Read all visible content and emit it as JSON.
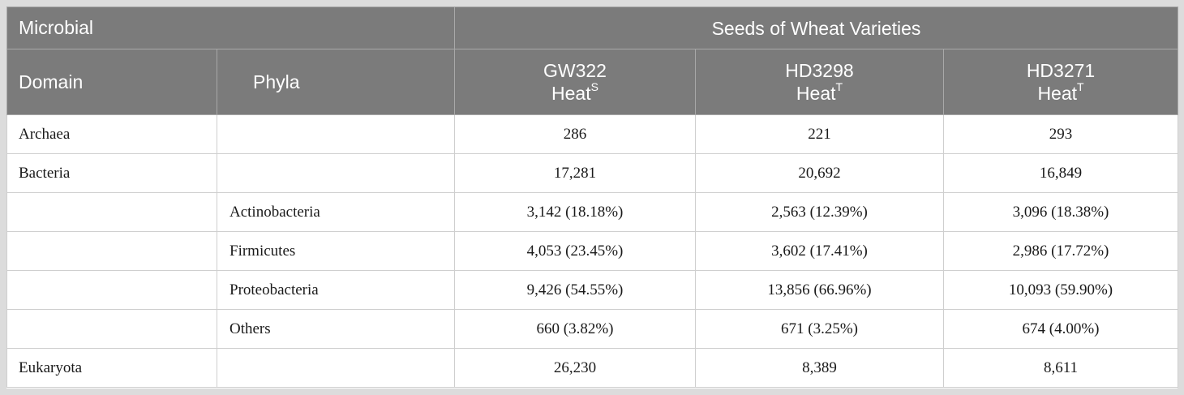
{
  "header": {
    "microbial": "Microbial",
    "seeds": "Seeds of Wheat Varieties",
    "domain": "Domain",
    "phyla": "Phyla",
    "varieties": [
      {
        "name": "GW322",
        "heat": "Heat",
        "sup": "S"
      },
      {
        "name": "HD3298",
        "heat": "Heat",
        "sup": "T"
      },
      {
        "name": "HD3271",
        "heat": "Heat",
        "sup": "T"
      }
    ]
  },
  "rows": [
    {
      "domain": "Archaea",
      "phylum": "",
      "values": [
        "286",
        "221",
        "293"
      ]
    },
    {
      "domain": "Bacteria",
      "phylum": "",
      "values": [
        "17,281",
        "20,692",
        "16,849"
      ]
    },
    {
      "domain": "",
      "phylum": "Actinobacteria",
      "values": [
        "3,142 (18.18%)",
        "2,563 (12.39%)",
        "3,096 (18.38%)"
      ]
    },
    {
      "domain": "",
      "phylum": "Firmicutes",
      "values": [
        "4,053 (23.45%)",
        "3,602 (17.41%)",
        "2,986 (17.72%)"
      ]
    },
    {
      "domain": "",
      "phylum": "Proteobacteria",
      "values": [
        "9,426 (54.55%)",
        "13,856 (66.96%)",
        "10,093 (59.90%)"
      ]
    },
    {
      "domain": "",
      "phylum": "Others",
      "values": [
        "660 (3.82%)",
        "671 (3.25%)",
        "674 (4.00%)"
      ]
    },
    {
      "domain": "Eukaryota",
      "phylum": "",
      "values": [
        "26,230",
        "8,389",
        "8,611"
      ]
    }
  ]
}
